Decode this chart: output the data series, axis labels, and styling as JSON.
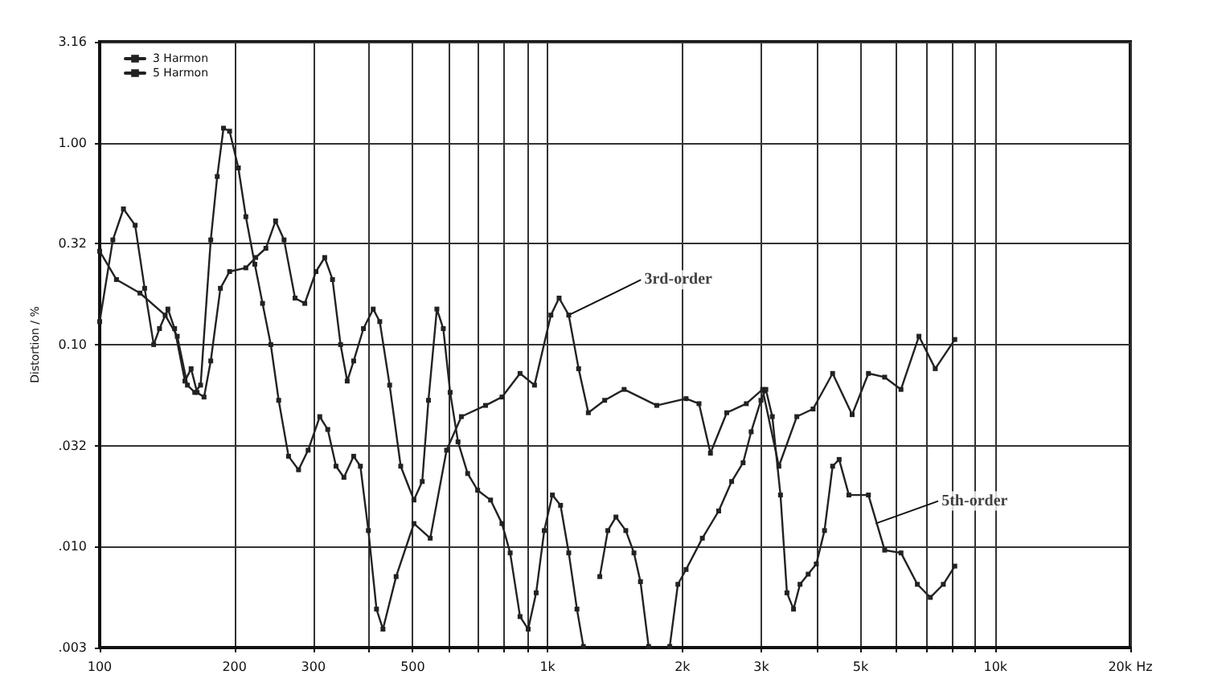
{
  "chart_data": {
    "type": "line",
    "ylabel": "Distortion / %",
    "log": "xy",
    "grid": true,
    "legend": "top left",
    "marker": "square",
    "line_style": "solid",
    "xlim": [
      100,
      20000
    ],
    "xticks": [
      100,
      200,
      300,
      {
        "value": 400,
        "label": null
      },
      500,
      {
        "value": 600,
        "label": null
      },
      {
        "value": 700,
        "label": null
      },
      {
        "value": 800,
        "label": null
      },
      {
        "value": 900,
        "label": null
      },
      {
        "value": 1000,
        "label": "1k"
      },
      {
        "value": 2000,
        "label": "2k"
      },
      {
        "value": 3000,
        "label": "3k"
      },
      {
        "value": 4000,
        "label": null
      },
      {
        "value": 5000,
        "label": "5k"
      },
      {
        "value": 6000,
        "label": null
      },
      {
        "value": 7000,
        "label": null
      },
      {
        "value": 8000,
        "label": null
      },
      {
        "value": 9000,
        "label": null
      },
      {
        "value": 10000,
        "label": "10k"
      },
      {
        "value": 20000,
        "label": "20k Hz"
      }
    ],
    "ylim": [
      0.00316,
      3.16
    ],
    "yticks": [
      {
        "value": 0.00316,
        "label": ".003"
      },
      {
        "value": 0.01,
        "label": ".010"
      },
      {
        "value": 0.0316,
        "label": ".032"
      },
      {
        "value": 0.1,
        "label": "0.10"
      },
      {
        "value": 0.316,
        "label": "0.32"
      },
      {
        "value": 1,
        "label": "1.00"
      },
      {
        "value": 3.16,
        "label": "3.16"
      }
    ],
    "series": [
      {
        "name": "3 Harmon",
        "color": "#222222",
        "x": [
          100,
          109,
          123,
          140,
          149,
          157,
          163,
          168,
          177,
          183,
          189,
          195,
          204,
          212,
          222,
          231,
          241,
          251,
          264,
          278,
          292,
          310,
          323,
          337,
          351,
          369,
          382,
          398,
          415,
          429,
          459,
          503,
          547,
          595,
          642,
          727,
          791,
          868,
          935,
          1017,
          1061,
          1115,
          1173,
          1233,
          1341,
          1482,
          1753,
          2038,
          2178,
          2310,
          2512,
          2778,
          3020,
          3284,
          3601,
          3915,
          4329,
          4786,
          5204,
          5657,
          6152,
          6747,
          7337,
          8113
        ],
        "values": [
          0.29,
          0.21,
          0.18,
          0.14,
          0.11,
          0.063,
          0.058,
          0.063,
          0.33,
          0.68,
          1.18,
          1.14,
          0.75,
          0.43,
          0.25,
          0.16,
          0.1,
          0.053,
          0.028,
          0.024,
          0.03,
          0.044,
          0.038,
          0.025,
          0.022,
          0.028,
          0.025,
          0.012,
          0.0049,
          0.0039,
          0.0071,
          0.013,
          0.011,
          0.03,
          0.044,
          0.05,
          0.055,
          0.072,
          0.063,
          0.14,
          0.17,
          0.14,
          0.076,
          0.046,
          0.053,
          0.06,
          0.05,
          0.054,
          0.051,
          0.029,
          0.046,
          0.051,
          0.06,
          0.025,
          0.044,
          0.048,
          0.072,
          0.045,
          0.072,
          0.069,
          0.06,
          0.11,
          0.076,
          0.106
        ]
      },
      {
        "name": "5 Harmon",
        "color": "#222222",
        "x": [
          100,
          107,
          113,
          120,
          126,
          132,
          136,
          142,
          147,
          155,
          160,
          165,
          171,
          177,
          186,
          195,
          212,
          223,
          235,
          247,
          258,
          273,
          287,
          304,
          318,
          331,
          345,
          357,
          369,
          388,
          408,
          422,
          444,
          470,
          503,
          525,
          542,
          566,
          585,
          606,
          631,
          663,
          698,
          746,
          791,
          825,
          868,
          905,
          943,
          983,
          1025,
          1069,
          1115,
          1163,
          1202,
          1254,
          1308,
          1363,
          1421,
          1495,
          1559,
          1612,
          1681,
          1768,
          1874,
          1954,
          2038,
          2216,
          2410,
          2576,
          2732,
          2848,
          2995,
          3071,
          3175,
          3311,
          3423,
          3541,
          3661,
          3818,
          3981,
          4152,
          4329,
          4477,
          4707,
          5204,
          5657,
          6152,
          6692,
          7153,
          7648,
          8113
        ],
        "values": [
          0.13,
          0.33,
          0.47,
          0.39,
          0.19,
          0.1,
          0.12,
          0.15,
          0.12,
          0.066,
          0.076,
          0.058,
          0.055,
          0.083,
          0.19,
          0.23,
          0.24,
          0.27,
          0.3,
          0.41,
          0.33,
          0.17,
          0.16,
          0.23,
          0.27,
          0.21,
          0.1,
          0.066,
          0.083,
          0.12,
          0.15,
          0.13,
          0.063,
          0.025,
          0.017,
          0.021,
          0.053,
          0.15,
          0.12,
          0.058,
          0.033,
          0.023,
          0.019,
          0.017,
          0.013,
          0.0093,
          0.0045,
          0.0039,
          0.0059,
          0.012,
          0.018,
          0.016,
          0.0093,
          0.0049,
          0.0032,
          null,
          0.0071,
          0.012,
          0.014,
          0.012,
          0.0093,
          0.0067,
          0.0032,
          null,
          0.0032,
          0.0065,
          0.0077,
          0.011,
          0.015,
          0.021,
          0.026,
          0.037,
          0.053,
          0.06,
          0.044,
          0.018,
          0.0059,
          0.0049,
          0.0065,
          0.0073,
          0.0082,
          0.012,
          0.025,
          0.027,
          0.018,
          0.018,
          0.0096,
          0.0093,
          0.0065,
          0.0056,
          0.0065,
          0.008
        ]
      }
    ],
    "annotations": [
      {
        "text": "3rd-order",
        "x": 1115,
        "y": 0.14
      },
      {
        "text": "5th-order",
        "x": 5400,
        "y": 0.013
      }
    ]
  }
}
